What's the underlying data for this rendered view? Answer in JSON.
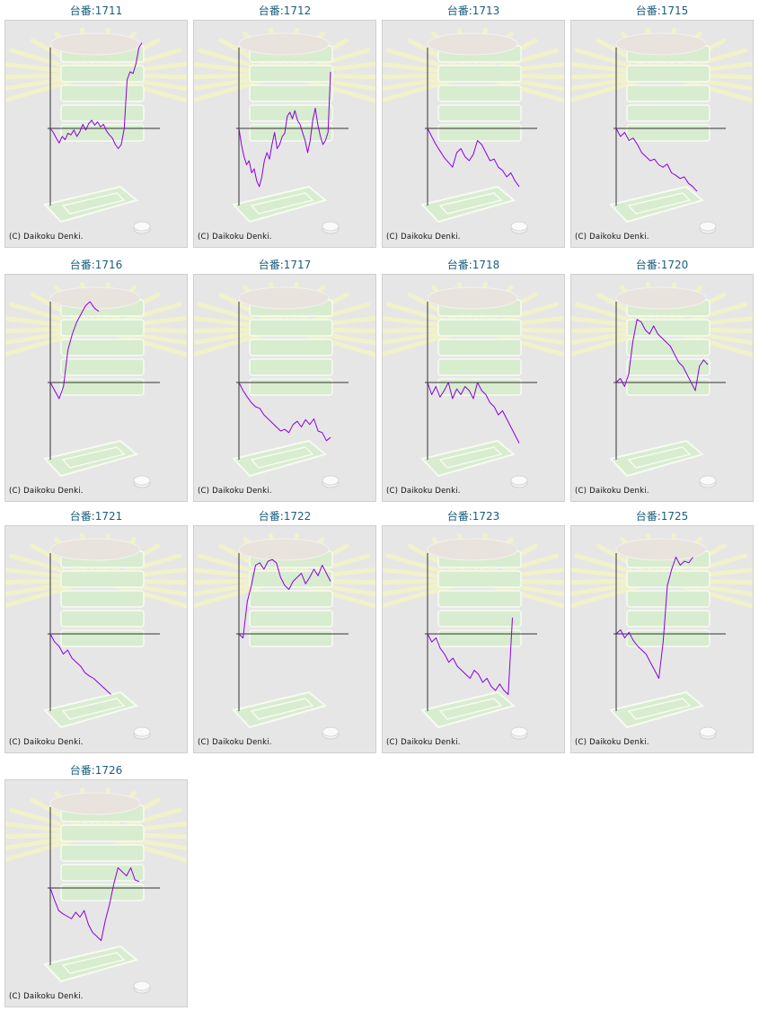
{
  "page": {
    "copyright": "(C) Daikoku Denki."
  },
  "colors": {
    "line": "#8b00e0",
    "axis": "#333333",
    "title": "#1b5e7e",
    "panel_bg": "#e6e6e6"
  },
  "chart_data": [
    {
      "type": "line",
      "title": "台番:1711",
      "values": [
        0,
        -5,
        -12,
        -18,
        -10,
        -14,
        -6,
        -8,
        -2,
        -10,
        -4,
        5,
        -2,
        6,
        10,
        4,
        8,
        2,
        5,
        -3,
        -8,
        -12,
        -20,
        -25,
        -20,
        0,
        60,
        70,
        68,
        80,
        100,
        106
      ]
    },
    {
      "type": "line",
      "title": "台番:1712",
      "values": [
        0,
        -20,
        -35,
        -45,
        -40,
        -55,
        -50,
        -65,
        -72,
        -60,
        -40,
        -30,
        -38,
        -20,
        -5,
        -25,
        -20,
        -10,
        -6,
        15,
        20,
        12,
        22,
        10,
        5,
        -5,
        -15,
        -30,
        -15,
        10,
        25,
        5,
        -10,
        -20,
        -15,
        -5,
        70
      ]
    },
    {
      "type": "line",
      "title": "台番:1713",
      "values": [
        0,
        -10,
        -20,
        -28,
        -36,
        -42,
        -48,
        -30,
        -25,
        -35,
        -40,
        -32,
        -15,
        -20,
        -30,
        -40,
        -38,
        -48,
        -52,
        -60,
        -55,
        -65,
        -72
      ]
    },
    {
      "type": "line",
      "title": "台番:1715",
      "values": [
        0,
        -10,
        -5,
        -15,
        -12,
        -20,
        -30,
        -35,
        -40,
        -38,
        -45,
        -48,
        -44,
        -55,
        -58,
        -62,
        -60,
        -68,
        -72,
        -78
      ]
    },
    {
      "type": "line",
      "title": "台番:1716",
      "values": [
        0,
        -10,
        -20,
        -5,
        40,
        60,
        75,
        85,
        95,
        100,
        92,
        88
      ]
    },
    {
      "type": "line",
      "title": "台番:1717",
      "values": [
        0,
        -10,
        -18,
        -25,
        -30,
        -32,
        -40,
        -45,
        -50,
        -55,
        -60,
        -58,
        -62,
        -52,
        -48,
        -55,
        -46,
        -52,
        -45,
        -60,
        -62,
        -72,
        -68
      ]
    },
    {
      "type": "line",
      "title": "台番:1718",
      "values": [
        0,
        -15,
        -5,
        -18,
        -10,
        0,
        -20,
        -8,
        -15,
        -5,
        -10,
        -20,
        0,
        -10,
        -15,
        -25,
        -30,
        -40,
        -35,
        -45,
        -55,
        -65,
        -75
      ]
    },
    {
      "type": "line",
      "title": "台番:1720",
      "values": [
        0,
        5,
        -5,
        10,
        50,
        78,
        75,
        65,
        60,
        70,
        60,
        55,
        50,
        45,
        35,
        25,
        20,
        10,
        0,
        -10,
        20,
        28,
        22
      ]
    },
    {
      "type": "line",
      "title": "台番:1721",
      "values": [
        0,
        -10,
        -15,
        -25,
        -20,
        -30,
        -35,
        -40,
        -48,
        -52,
        -55,
        -60,
        -65,
        -70,
        -75
      ]
    },
    {
      "type": "line",
      "title": "台番:1722",
      "values": [
        0,
        -5,
        40,
        60,
        85,
        88,
        80,
        90,
        92,
        88,
        70,
        60,
        55,
        65,
        70,
        75,
        62,
        70,
        80,
        72,
        85,
        75,
        65
      ]
    },
    {
      "type": "line",
      "title": "台番:1723",
      "values": [
        0,
        -10,
        -5,
        -18,
        -25,
        -35,
        -30,
        -40,
        -45,
        -50,
        -55,
        -45,
        -50,
        -60,
        -55,
        -65,
        -70,
        -62,
        -70,
        -75,
        20
      ]
    },
    {
      "type": "line",
      "title": "台番:1725",
      "values": [
        0,
        5,
        -5,
        2,
        -8,
        -15,
        -20,
        -25,
        -35,
        -45,
        -55,
        -10,
        60,
        80,
        95,
        85,
        90,
        88,
        95
      ]
    },
    {
      "type": "line",
      "title": "台番:1726",
      "values": [
        0,
        -15,
        -28,
        -32,
        -35,
        -38,
        -30,
        -36,
        -28,
        -45,
        -55,
        -60,
        -65,
        -40,
        -20,
        5,
        25,
        20,
        15,
        25,
        10,
        8
      ]
    }
  ]
}
